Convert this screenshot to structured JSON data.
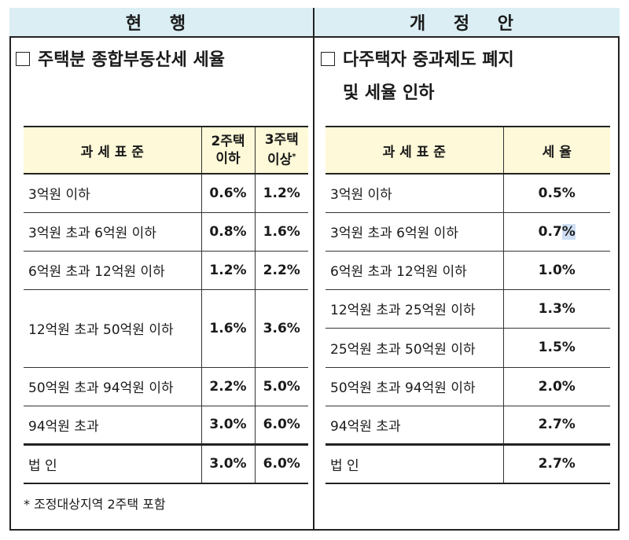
{
  "headers": {
    "current": "현 행",
    "revised": "개 정 안"
  },
  "left": {
    "title": "주택분 종합부동산세 세율",
    "columns": [
      "과 세 표 준",
      "2주택 이하",
      "3주택 이상*"
    ],
    "col2": {
      "line1": "2주택",
      "line2": "이하"
    },
    "col3": {
      "line1": "3주택",
      "line2": "이상",
      "mark": "*"
    },
    "rows": [
      {
        "base": "3억원 이하",
        "r2": "0.6%",
        "r3": "1.2%"
      },
      {
        "base": "3억원 초과 6억원 이하",
        "r2": "0.8%",
        "r3": "1.6%"
      },
      {
        "base": "6억원 초과 12억원 이하",
        "r2": "1.2%",
        "r3": "2.2%"
      },
      {
        "base": "12억원 초과 50억원 이하",
        "r2": "1.6%",
        "r3": "3.6%"
      },
      {
        "base": "50억원 초과 94억원 이하",
        "r2": "2.2%",
        "r3": "5.0%"
      },
      {
        "base": "94억원 초과",
        "r2": "3.0%",
        "r3": "6.0%"
      },
      {
        "base": "법 인",
        "r2": "3.0%",
        "r3": "6.0%"
      }
    ],
    "footnote": "* 조정대상지역 2주택 포함"
  },
  "right": {
    "title_line1": "다주택자 중과제도 폐지",
    "title_line2": "및 세율 인하",
    "columns": [
      "과 세 표 준",
      "세 율"
    ],
    "rows": [
      {
        "base": "3억원 이하",
        "rate": "0.5%"
      },
      {
        "base": "3억원 초과 6억원 이하",
        "rate_main": "0.7",
        "rate_hl": "%"
      },
      {
        "base": "6억원 초과 12억원 이하",
        "rate": "1.0%"
      },
      {
        "base": "12억원 초과 25억원 이하",
        "rate": "1.3%"
      },
      {
        "base": "25억원 초과 50억원 이하",
        "rate": "1.5%"
      },
      {
        "base": "50억원 초과 94억원 이하",
        "rate": "2.0%"
      },
      {
        "base": "94억원 초과",
        "rate": "2.7%"
      },
      {
        "base": "법 인",
        "rate": "2.7%"
      }
    ]
  }
}
